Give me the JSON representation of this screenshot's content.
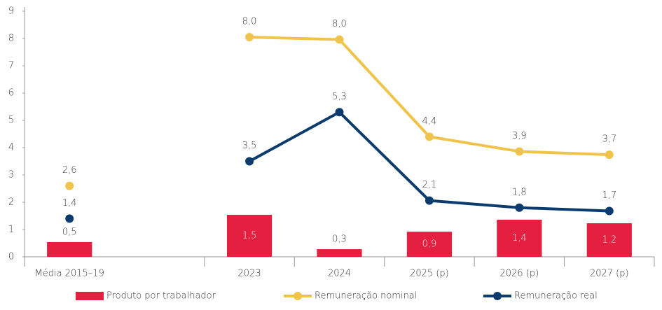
{
  "chart_data": {
    "type": "combo",
    "categories": [
      "Média 2015–19",
      null,
      "2023",
      "2024",
      "2025 (p)",
      "2026 (p)",
      "2027 (p)"
    ],
    "ylim": [
      0,
      9
    ],
    "yticks": [
      0,
      1,
      2,
      3,
      4,
      5,
      6,
      7,
      8,
      9
    ],
    "legend": "bottom",
    "series": [
      {
        "name": "Produto por trabalhador",
        "type": "bar",
        "color": "#e51f3f",
        "values": [
          0.54,
          null,
          1.54,
          0.28,
          0.92,
          1.36,
          1.23
        ],
        "value_labels": [
          "0,5",
          null,
          "1,5",
          "0,3",
          "0,9",
          "1,4",
          "1,2"
        ]
      },
      {
        "name": "Remuneração nominal",
        "type": "line",
        "color": "#f0c44c",
        "values": [
          2.6,
          null,
          8.05,
          7.96,
          4.4,
          3.86,
          3.74
        ],
        "value_labels": [
          "2,6",
          null,
          "8,0",
          "8,0",
          "4,4",
          "3,9",
          "3,7"
        ]
      },
      {
        "name": "Remuneração real",
        "type": "line",
        "color": "#0c3c6e",
        "values": [
          1.4,
          null,
          3.5,
          5.3,
          2.06,
          1.8,
          1.68
        ],
        "value_labels": [
          "1,4",
          null,
          "3,5",
          "5,3",
          "2,1",
          "1,8",
          "1,7"
        ]
      }
    ]
  }
}
